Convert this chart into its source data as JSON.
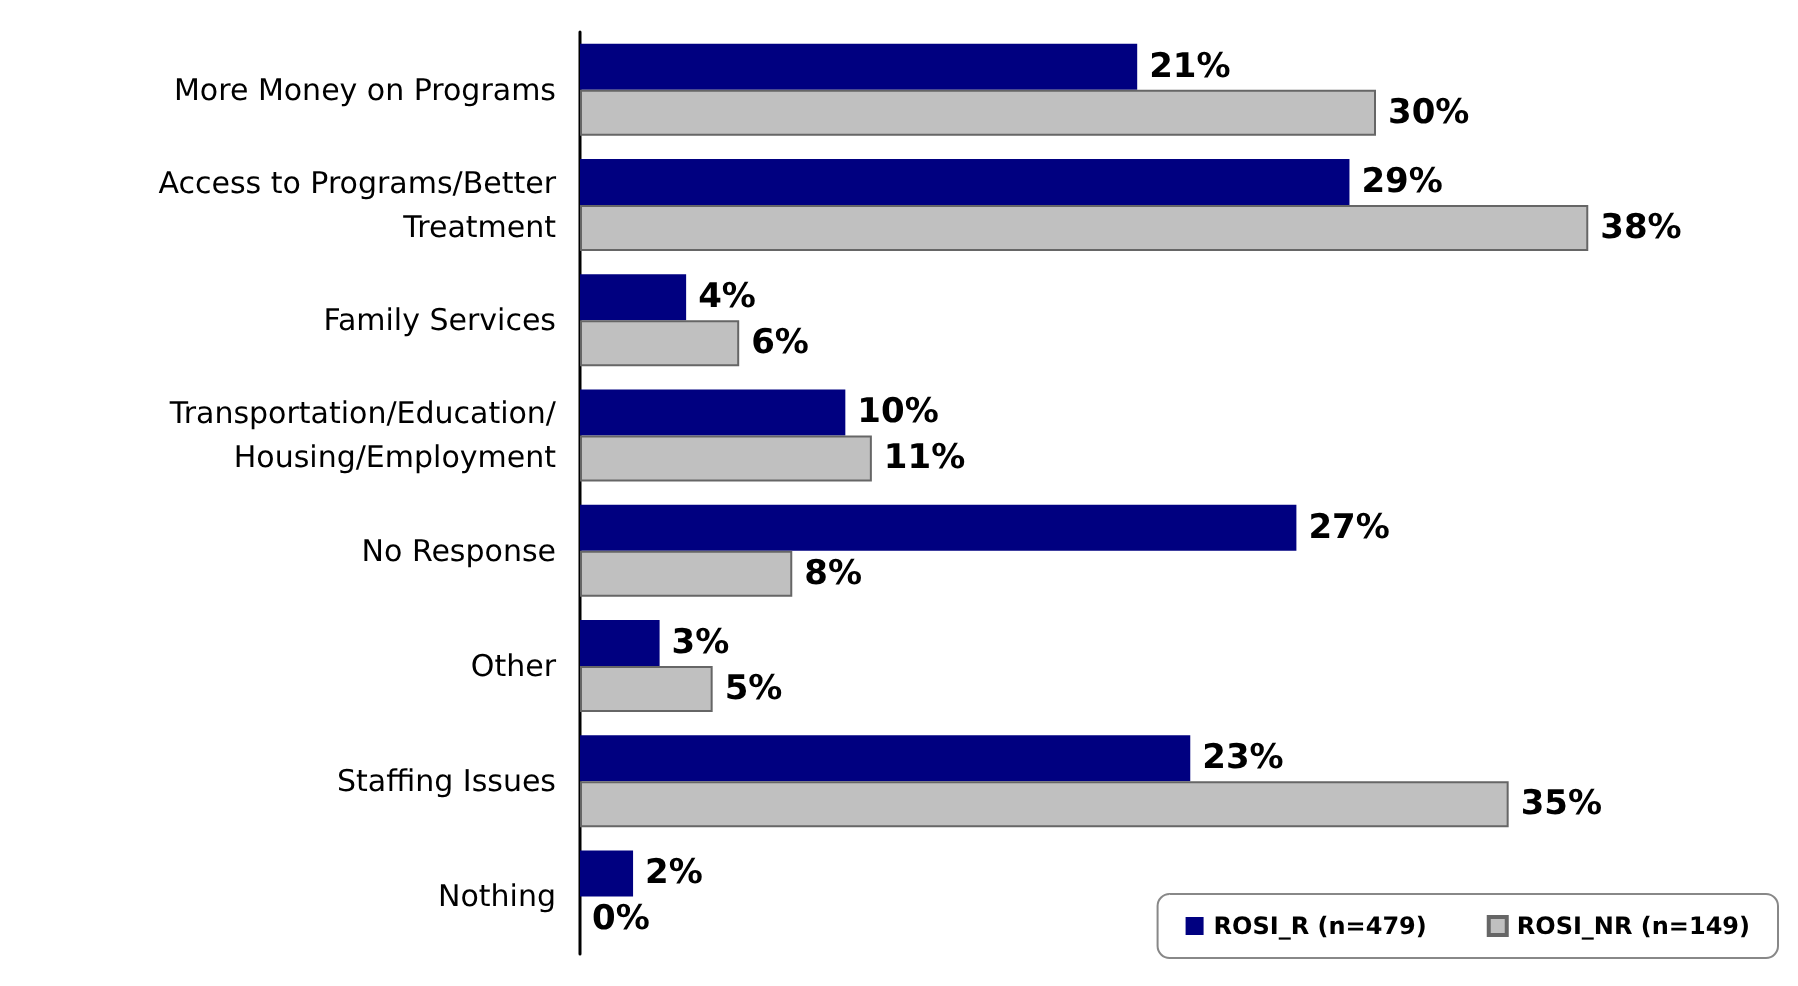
{
  "chart_data": {
    "type": "bar",
    "orientation": "horizontal",
    "categories": [
      "More Money on Programs",
      "Access to Programs/Better\nTreatment",
      "Family Services",
      "Transportation/Education/\nHousing/Employment",
      "No Response",
      "Other",
      "Staffing Issues",
      "Nothing"
    ],
    "xlim": [
      0,
      45
    ],
    "series": [
      {
        "name": "ROSI_R (n=479)",
        "color": "#000080",
        "values": [
          21,
          29,
          4,
          10,
          27,
          3,
          23,
          2
        ],
        "value_labels": [
          "21%",
          "29%",
          "4%",
          "10%",
          "27%",
          "3%",
          "23%",
          "2%"
        ]
      },
      {
        "name": "ROSI_NR (n=149)",
        "color": "#c0c0c0",
        "values": [
          30,
          38,
          6,
          11,
          8,
          5,
          35,
          0
        ],
        "value_labels": [
          "30%",
          "38%",
          "6%",
          "11%",
          "8%",
          "5%",
          "35%",
          "0%"
        ]
      }
    ],
    "legend": "bottom right",
    "grid": false
  }
}
